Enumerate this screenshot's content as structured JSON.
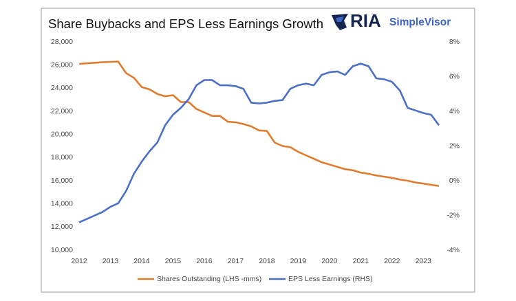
{
  "chart_data": {
    "type": "line",
    "title": "Share Buybacks and EPS Less Earnings Growth",
    "logo": {
      "brand": "RIA",
      "product": "SimpleVisor"
    },
    "x": [
      2012,
      2012.25,
      2012.5,
      2012.75,
      2013,
      2013.25,
      2013.5,
      2013.75,
      2014,
      2014.25,
      2014.5,
      2014.75,
      2015,
      2015.25,
      2015.5,
      2015.75,
      2016,
      2016.25,
      2016.5,
      2016.75,
      2017,
      2017.25,
      2017.5,
      2017.75,
      2018,
      2018.25,
      2018.5,
      2018.75,
      2019,
      2019.25,
      2019.5,
      2019.75,
      2020,
      2020.25,
      2020.5,
      2020.75,
      2021,
      2021.25,
      2021.5,
      2021.75,
      2022,
      2022.25,
      2022.5,
      2022.75,
      2023,
      2023.25,
      2023.5
    ],
    "series": [
      {
        "name": "Shares Outstanding (LHS -mms)",
        "color": "#e07b2e",
        "axis": "y",
        "values": [
          26100,
          26150,
          26200,
          26250,
          26280,
          26300,
          25300,
          24900,
          24100,
          23900,
          23500,
          23300,
          23400,
          22800,
          22800,
          22200,
          21900,
          21600,
          21600,
          21100,
          21050,
          20900,
          20700,
          20350,
          20300,
          19300,
          19000,
          18900,
          18500,
          18200,
          17900,
          17600,
          17400,
          17200,
          17000,
          16900,
          16700,
          16600,
          16450,
          16350,
          16250,
          16100,
          16000,
          15850,
          15750,
          15650,
          15550
        ]
      },
      {
        "name": "EPS Less Earnings (RHS)",
        "color": "#4a6fc4",
        "axis": "y2",
        "values": [
          -2.4,
          -2.2,
          -2.0,
          -1.8,
          -1.5,
          -1.3,
          -0.6,
          0.4,
          1.1,
          1.7,
          2.2,
          3.2,
          3.8,
          4.2,
          4.7,
          5.5,
          5.8,
          5.8,
          5.5,
          5.5,
          5.45,
          5.3,
          4.5,
          4.45,
          4.5,
          4.6,
          4.65,
          5.3,
          5.5,
          5.6,
          5.5,
          6.1,
          6.25,
          6.3,
          6.1,
          6.6,
          6.75,
          6.6,
          5.9,
          5.85,
          5.7,
          5.2,
          4.2,
          4.05,
          3.9,
          3.8,
          3.2
        ]
      }
    ],
    "xlim": [
      2012,
      2023.5
    ],
    "xticks": [
      2012,
      2013,
      2014,
      2015,
      2016,
      2017,
      2018,
      2019,
      2020,
      2021,
      2022,
      2023
    ],
    "ylim": [
      10000,
      28000
    ],
    "yticks": [
      {
        "value": 10000,
        "label": "10,000"
      },
      {
        "value": 12000,
        "label": "12,000"
      },
      {
        "value": 14000,
        "label": "14,000"
      },
      {
        "value": 16000,
        "label": "16,000"
      },
      {
        "value": 18000,
        "label": "18,000"
      },
      {
        "value": 20000,
        "label": "20,000"
      },
      {
        "value": 22000,
        "label": "22,000"
      },
      {
        "value": 24000,
        "label": "24,000"
      },
      {
        "value": 26000,
        "label": "26,000"
      },
      {
        "value": 28000,
        "label": "28,000"
      }
    ],
    "y2lim": [
      -4,
      8
    ],
    "y2ticks": [
      {
        "value": -4,
        "label": "-4%"
      },
      {
        "value": -2,
        "label": "-2%"
      },
      {
        "value": 0,
        "label": "0%"
      },
      {
        "value": 2,
        "label": "2%"
      },
      {
        "value": 4,
        "label": "4%"
      },
      {
        "value": 6,
        "label": "6%"
      },
      {
        "value": 8,
        "label": "8%"
      }
    ],
    "grid": false,
    "legend": "bottom"
  }
}
